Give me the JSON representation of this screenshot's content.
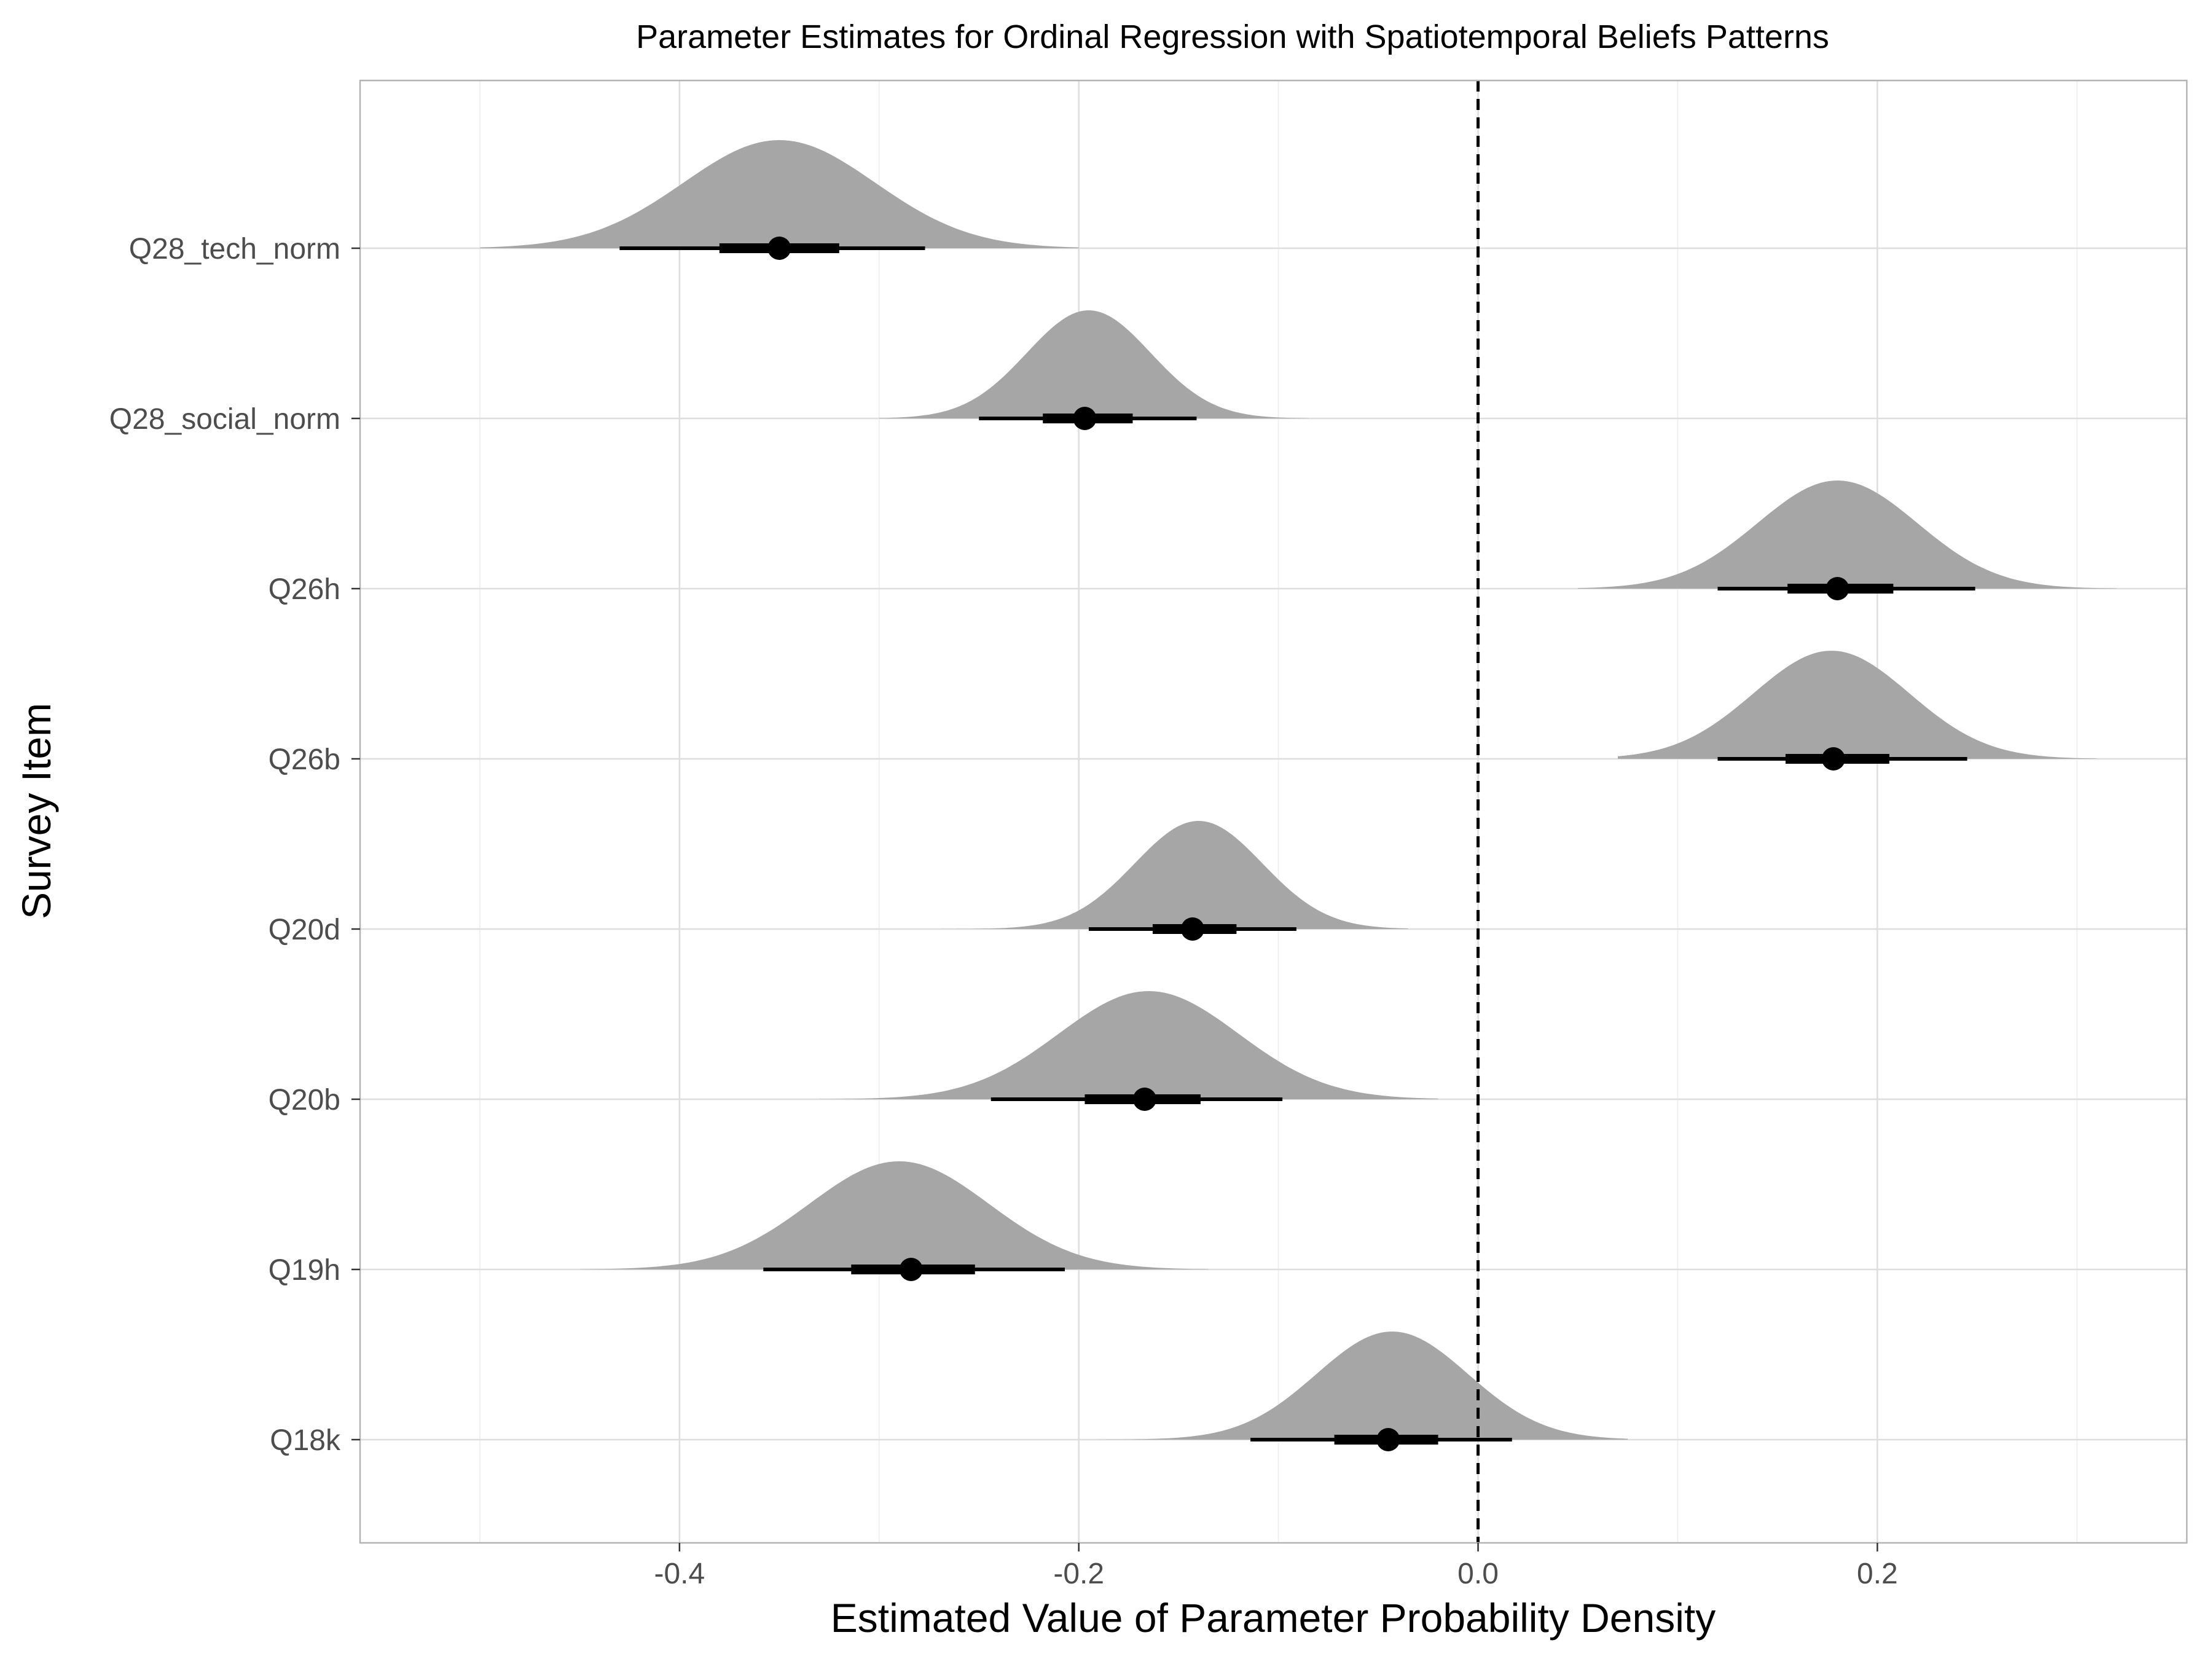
{
  "chart_data": {
    "type": "density-interval",
    "title": "Parameter Estimates for Ordinal Regression with Spatiotemporal Beliefs Patterns",
    "xlabel": "Estimated Value of Parameter Probability Density",
    "ylabel": "Survey Item",
    "xlim": [
      -0.56,
      0.355
    ],
    "x_ticks": [
      -0.4,
      -0.2,
      0.0,
      0.2
    ],
    "x_tick_labels": [
      "-0.4",
      "-0.2",
      "0.0",
      "0.2"
    ],
    "reference_line": {
      "x": 0.0,
      "style": "dashed",
      "color": "#000000"
    },
    "grid": true,
    "fill_color": "#a6a6a6",
    "point_color": "#000000",
    "items": [
      {
        "label": "Q28_tech_norm",
        "median": -0.35,
        "inner": [
          -0.38,
          -0.32
        ],
        "outer": [
          -0.43,
          -0.277
        ],
        "range": [
          -0.5,
          -0.2
        ],
        "mode": -0.35,
        "spread": 0.048
      },
      {
        "label": "Q28_social_norm",
        "median": -0.197,
        "inner": [
          -0.218,
          -0.173
        ],
        "outer": [
          -0.25,
          -0.141
        ],
        "range": [
          -0.3,
          -0.085
        ],
        "mode": -0.195,
        "spread": 0.031
      },
      {
        "label": "Q26h",
        "median": 0.18,
        "inner": [
          0.155,
          0.208
        ],
        "outer": [
          0.12,
          0.249
        ],
        "range": [
          0.05,
          0.32
        ],
        "mode": 0.18,
        "spread": 0.04
      },
      {
        "label": "Q26b",
        "median": 0.178,
        "inner": [
          0.154,
          0.206
        ],
        "outer": [
          0.12,
          0.245
        ],
        "range": [
          0.07,
          0.31
        ],
        "mode": 0.177,
        "spread": 0.039
      },
      {
        "label": "Q20d",
        "median": -0.143,
        "inner": [
          -0.163,
          -0.121
        ],
        "outer": [
          -0.195,
          -0.091
        ],
        "range": [
          -0.27,
          -0.035
        ],
        "mode": -0.14,
        "spread": 0.032
      },
      {
        "label": "Q20b",
        "median": -0.167,
        "inner": [
          -0.197,
          -0.139
        ],
        "outer": [
          -0.244,
          -0.098
        ],
        "range": [
          -0.33,
          -0.02
        ],
        "mode": -0.165,
        "spread": 0.045
      },
      {
        "label": "Q19h",
        "median": -0.284,
        "inner": [
          -0.314,
          -0.252
        ],
        "outer": [
          -0.358,
          -0.207
        ],
        "range": [
          -0.45,
          -0.135
        ],
        "mode": -0.29,
        "spread": 0.045
      },
      {
        "label": "Q18k",
        "median": -0.045,
        "inner": [
          -0.072,
          -0.02
        ],
        "outer": [
          -0.114,
          0.017
        ],
        "range": [
          -0.19,
          0.075
        ],
        "mode": -0.043,
        "spread": 0.038
      }
    ]
  }
}
